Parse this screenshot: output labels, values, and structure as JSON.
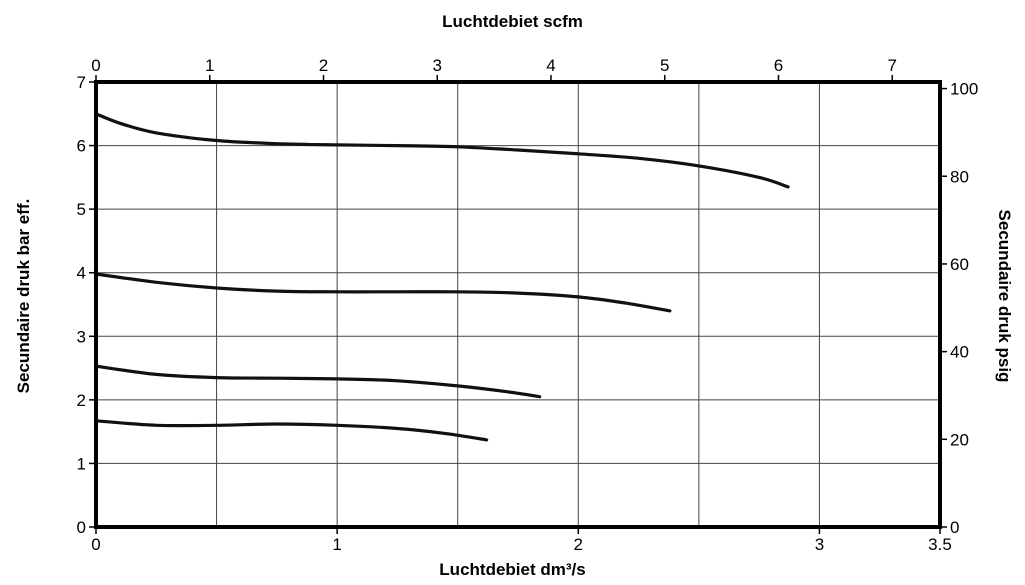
{
  "chart_data": {
    "type": "line",
    "title": "",
    "xlabel": "Luchtdebiet dm³/s",
    "x2label": "Luchtdebiet scfm",
    "ylabel": "Secundaire druk bar eff.",
    "y2label": "Secundaire druk psig",
    "xlim": [
      0,
      3.5
    ],
    "ylim": [
      0,
      7
    ],
    "x2lim": [
      0,
      7.42
    ],
    "y2lim": [
      0,
      101.5
    ],
    "x_ticks": [
      0,
      1,
      2,
      3,
      3.5
    ],
    "x_tick_labels": [
      "0",
      "1",
      "2",
      "3",
      "3.5"
    ],
    "x_gridlines": [
      0.5,
      1,
      1.5,
      2,
      2.5,
      3
    ],
    "y_ticks": [
      0,
      1,
      2,
      3,
      4,
      5,
      6,
      7
    ],
    "y_tick_labels": [
      "0",
      "1",
      "2",
      "3",
      "4",
      "5",
      "6",
      "7"
    ],
    "x2_ticks": [
      0,
      1,
      2,
      3,
      4,
      5,
      6,
      7
    ],
    "x2_tick_labels": [
      "0",
      "1",
      "2",
      "3",
      "4",
      "5",
      "6",
      "7"
    ],
    "y2_ticks": [
      0,
      20,
      40,
      60,
      80,
      100
    ],
    "y2_tick_labels": [
      "0",
      "20",
      "40",
      "60",
      "80",
      "100"
    ],
    "grid": true,
    "legend": "none",
    "line_color": "#111111",
    "series": [
      {
        "x": [
          0,
          0.1,
          0.25,
          0.5,
          0.75,
          1.0,
          1.25,
          1.5,
          1.75,
          2.0,
          2.25,
          2.5,
          2.75,
          2.87
        ],
        "y": [
          6.5,
          6.35,
          6.2,
          6.08,
          6.03,
          6.01,
          6.0,
          5.98,
          5.93,
          5.87,
          5.8,
          5.68,
          5.5,
          5.35
        ]
      },
      {
        "x": [
          0,
          0.25,
          0.5,
          0.75,
          1.0,
          1.25,
          1.5,
          1.75,
          2.0,
          2.2,
          2.38
        ],
        "y": [
          3.98,
          3.85,
          3.76,
          3.71,
          3.7,
          3.7,
          3.7,
          3.68,
          3.62,
          3.52,
          3.4
        ]
      },
      {
        "x": [
          0,
          0.25,
          0.5,
          0.75,
          1.0,
          1.25,
          1.5,
          1.7,
          1.84
        ],
        "y": [
          2.53,
          2.4,
          2.35,
          2.34,
          2.33,
          2.3,
          2.22,
          2.13,
          2.05
        ]
      },
      {
        "x": [
          0,
          0.25,
          0.5,
          0.75,
          1.0,
          1.25,
          1.45,
          1.62
        ],
        "y": [
          1.67,
          1.6,
          1.6,
          1.62,
          1.6,
          1.55,
          1.47,
          1.37
        ]
      }
    ]
  }
}
